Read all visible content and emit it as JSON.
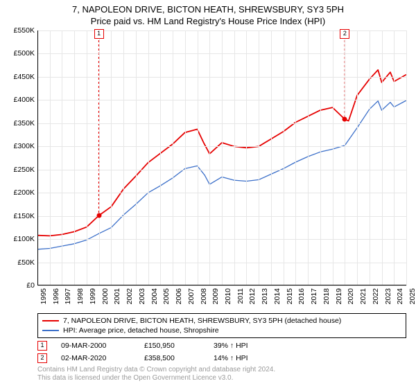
{
  "title": {
    "line1": "7, NAPOLEON DRIVE, BICTON HEATH, SHREWSBURY, SY3 5PH",
    "line2": "Price paid vs. HM Land Registry's House Price Index (HPI)"
  },
  "chart": {
    "type": "line",
    "background_color": "#ffffff",
    "grid_color": "#e6e6e6",
    "axis_color": "#000000",
    "ylim": [
      0,
      550000
    ],
    "ytick_step": 50000,
    "y_prefix": "£",
    "y_suffix": "K",
    "y_divisor": 1000,
    "xlim": [
      1995,
      2025
    ],
    "xticks": [
      1995,
      1996,
      1997,
      1998,
      1999,
      2000,
      2001,
      2002,
      2003,
      2004,
      2005,
      2006,
      2007,
      2008,
      2009,
      2010,
      2011,
      2012,
      2013,
      2014,
      2015,
      2016,
      2017,
      2018,
      2019,
      2020,
      2021,
      2022,
      2023,
      2024,
      2025
    ],
    "label_fontsize": 10.5,
    "title_fontsize": 13,
    "series": [
      {
        "name": "price_paid",
        "label": "7, NAPOLEON DRIVE, BICTON HEATH, SHREWSBURY, SY3 5PH (detached house)",
        "color": "#e60000",
        "line_width": 1.8,
        "points": [
          [
            1995,
            108000
          ],
          [
            1996,
            107000
          ],
          [
            1997,
            110000
          ],
          [
            1998,
            116000
          ],
          [
            1999,
            126000
          ],
          [
            2000,
            150950
          ],
          [
            2001,
            170000
          ],
          [
            2002,
            208000
          ],
          [
            2003,
            236000
          ],
          [
            2004,
            265000
          ],
          [
            2005,
            285000
          ],
          [
            2006,
            305000
          ],
          [
            2007,
            330000
          ],
          [
            2008,
            337000
          ],
          [
            2008.5,
            309000
          ],
          [
            2009,
            284000
          ],
          [
            2010,
            308000
          ],
          [
            2011,
            300000
          ],
          [
            2012,
            297000
          ],
          [
            2013,
            300000
          ],
          [
            2014,
            316000
          ],
          [
            2015,
            332000
          ],
          [
            2016,
            352000
          ],
          [
            2017,
            365000
          ],
          [
            2018,
            378000
          ],
          [
            2019,
            384000
          ],
          [
            2020,
            358500
          ],
          [
            2020.3,
            355000
          ],
          [
            2021,
            410000
          ],
          [
            2022,
            445000
          ],
          [
            2022.7,
            465000
          ],
          [
            2023,
            438000
          ],
          [
            2023.7,
            460000
          ],
          [
            2024,
            440000
          ],
          [
            2025,
            455000
          ]
        ]
      },
      {
        "name": "hpi",
        "label": "HPI: Average price, detached house, Shropshire",
        "color": "#3b6fc9",
        "line_width": 1.3,
        "points": [
          [
            1995,
            78000
          ],
          [
            1996,
            80000
          ],
          [
            1997,
            85000
          ],
          [
            1998,
            90000
          ],
          [
            1999,
            98000
          ],
          [
            2000,
            112000
          ],
          [
            2001,
            125000
          ],
          [
            2002,
            152000
          ],
          [
            2003,
            175000
          ],
          [
            2004,
            200000
          ],
          [
            2005,
            215000
          ],
          [
            2006,
            232000
          ],
          [
            2007,
            252000
          ],
          [
            2008,
            258000
          ],
          [
            2008.6,
            238000
          ],
          [
            2009,
            218000
          ],
          [
            2010,
            234000
          ],
          [
            2011,
            227000
          ],
          [
            2012,
            225000
          ],
          [
            2013,
            228000
          ],
          [
            2014,
            240000
          ],
          [
            2015,
            252000
          ],
          [
            2016,
            266000
          ],
          [
            2017,
            278000
          ],
          [
            2018,
            288000
          ],
          [
            2019,
            294000
          ],
          [
            2020,
            302000
          ],
          [
            2021,
            340000
          ],
          [
            2022,
            380000
          ],
          [
            2022.7,
            398000
          ],
          [
            2023,
            378000
          ],
          [
            2023.7,
            395000
          ],
          [
            2024,
            385000
          ],
          [
            2025,
            399000
          ]
        ]
      }
    ],
    "markers": [
      {
        "id": "1",
        "x": 2000,
        "y": 150950,
        "color": "#e60000"
      },
      {
        "id": "2",
        "x": 2020,
        "y": 358500,
        "color": "#e60000"
      }
    ]
  },
  "sales": [
    {
      "id": "1",
      "date": "09-MAR-2000",
      "price": "£150,950",
      "hpi_delta": "39% ↑ HPI",
      "color": "#e60000"
    },
    {
      "id": "2",
      "date": "02-MAR-2020",
      "price": "£358,500",
      "hpi_delta": "14% ↑ HPI",
      "color": "#e60000"
    }
  ],
  "footer": {
    "line1": "Contains HM Land Registry data © Crown copyright and database right 2024.",
    "line2": "This data is licensed under the Open Government Licence v3.0."
  }
}
